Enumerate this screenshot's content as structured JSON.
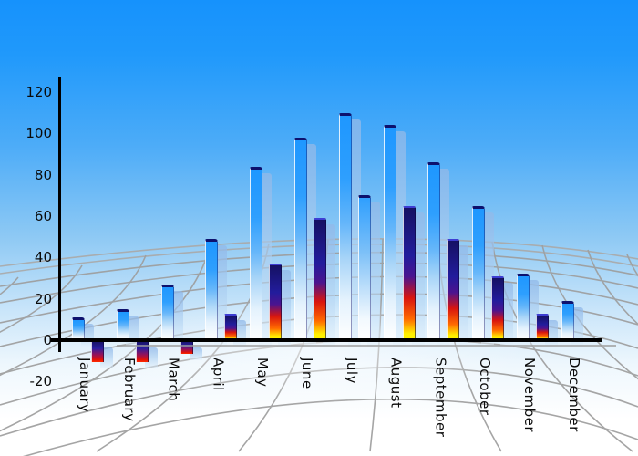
{
  "chart_data": {
    "type": "bar",
    "title": "",
    "xlabel": "",
    "ylabel": "",
    "categories": [
      "January",
      "February",
      "March",
      "April",
      "May",
      "June",
      "July",
      "August",
      "September",
      "October",
      "November",
      "December"
    ],
    "series": [
      {
        "name": "series-1-blue-gradient",
        "color": "#1e97ff",
        "values": [
          11,
          15,
          27,
          49,
          84,
          98,
          110,
          104,
          86,
          65,
          32,
          19
        ]
      },
      {
        "name": "series-2-flame-gradient",
        "color_stops": [
          "#151163",
          "#e01109",
          "#fff800"
        ],
        "values": [
          -10,
          -10,
          -6,
          13,
          37,
          59,
          70,
          65,
          49,
          31,
          13,
          null
        ],
        "point_styles": [
          "flame",
          "flame",
          "flame",
          "flame",
          "flame",
          "flame",
          "blue",
          "flame",
          "flame",
          "flame",
          "flame",
          null
        ]
      }
    ],
    "yticks": [
      120,
      100,
      80,
      60,
      40,
      20,
      0,
      -20
    ],
    "ylim": [
      -20,
      130
    ],
    "legend": "none",
    "grid": "curved-perspective-mesh-gray",
    "background": "sky-blue-to-white-gradient",
    "bar_shadow": "light-blue-offset-right-down"
  },
  "colors": {
    "sky_top": "#1692fc",
    "sky_bottom": "#ffffff",
    "axis": "#000000",
    "mesh_line": "#9e9e9e",
    "bar_blue_top": "#1e97ff",
    "bar_cap_navy": "#0d116e",
    "flame_navy": "#151163",
    "flame_red": "#e01109",
    "flame_yellow": "#fff800",
    "shadow_blue": "#a9c9ee"
  }
}
